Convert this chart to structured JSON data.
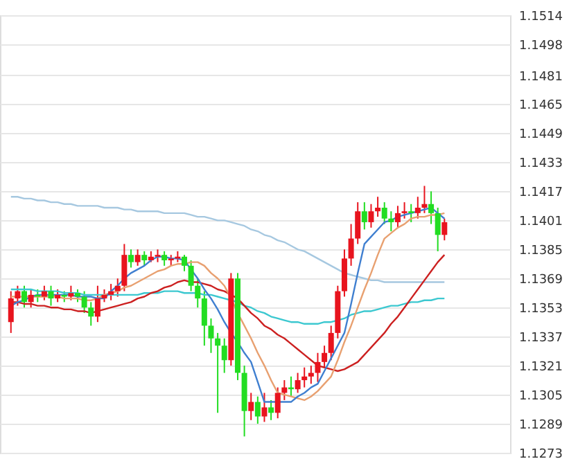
{
  "chart_data": {
    "type": "candlestick",
    "categories": [
      null,
      null,
      null,
      null,
      null,
      null,
      null,
      null,
      null,
      null,
      null,
      null,
      null,
      null,
      null,
      null,
      null,
      null,
      null,
      null,
      null,
      null,
      null,
      null,
      null,
      null,
      null,
      null,
      null,
      null,
      null,
      null,
      null,
      null,
      null,
      null,
      null,
      null,
      null,
      null,
      null,
      null,
      null,
      null,
      null,
      null,
      null,
      null,
      null,
      null,
      null,
      null,
      null,
      null,
      null,
      null,
      null,
      null,
      null,
      null,
      null,
      null,
      null,
      null,
      null,
      null
    ],
    "ohlc": [
      [
        1.1345,
        1.1362,
        1.1339,
        1.1358
      ],
      [
        1.1358,
        1.1365,
        1.1354,
        1.1362
      ],
      [
        1.1362,
        1.1365,
        1.1353,
        1.1356
      ],
      [
        1.1356,
        1.1363,
        1.1353,
        1.136
      ],
      [
        1.136,
        1.1363,
        1.1356,
        1.1359
      ],
      [
        1.1359,
        1.1365,
        1.1357,
        1.1362
      ],
      [
        1.1362,
        1.1365,
        1.1354,
        1.1358
      ],
      [
        1.1358,
        1.1363,
        1.1356,
        1.136
      ],
      [
        1.136,
        1.1362,
        1.1356,
        1.1359
      ],
      [
        1.1359,
        1.1365,
        1.1357,
        1.1361
      ],
      [
        1.1361,
        1.1363,
        1.1356,
        1.1359
      ],
      [
        1.1359,
        1.1362,
        1.135,
        1.1353
      ],
      [
        1.1353,
        1.1356,
        1.1343,
        1.1348
      ],
      [
        1.1348,
        1.1365,
        1.1345,
        1.1358
      ],
      [
        1.1358,
        1.1363,
        1.1356,
        1.136
      ],
      [
        1.136,
        1.1366,
        1.1357,
        1.1362
      ],
      [
        1.1362,
        1.1369,
        1.1359,
        1.1365
      ],
      [
        1.1365,
        1.1388,
        1.1362,
        1.1382
      ],
      [
        1.1382,
        1.1385,
        1.1375,
        1.1378
      ],
      [
        1.1378,
        1.1385,
        1.1376,
        1.1382
      ],
      [
        1.1382,
        1.1384,
        1.1376,
        1.1379
      ],
      [
        1.1379,
        1.1384,
        1.1378,
        1.1381
      ],
      [
        1.1381,
        1.1385,
        1.1378,
        1.1382
      ],
      [
        1.1382,
        1.1384,
        1.1376,
        1.1379
      ],
      [
        1.1379,
        1.1382,
        1.1376,
        1.138
      ],
      [
        1.138,
        1.1384,
        1.1378,
        1.1381
      ],
      [
        1.1381,
        1.1382,
        1.1373,
        1.1376
      ],
      [
        1.1376,
        1.1379,
        1.1362,
        1.1365
      ],
      [
        1.1365,
        1.1369,
        1.1353,
        1.1358
      ],
      [
        1.1358,
        1.1362,
        1.1332,
        1.1343
      ],
      [
        1.1343,
        1.1347,
        1.1328,
        1.1336
      ],
      [
        1.1336,
        1.1339,
        1.1295,
        1.1332
      ],
      [
        1.1332,
        1.1336,
        1.1317,
        1.1324
      ],
      [
        1.1324,
        1.1372,
        1.1321,
        1.1369
      ],
      [
        1.1369,
        1.1372,
        1.1313,
        1.1317
      ],
      [
        1.1317,
        1.1321,
        1.1282,
        1.1296
      ],
      [
        1.1296,
        1.1306,
        1.1291,
        1.1301
      ],
      [
        1.1301,
        1.1304,
        1.1289,
        1.1293
      ],
      [
        1.1293,
        1.1306,
        1.129,
        1.1298
      ],
      [
        1.1298,
        1.1302,
        1.1291,
        1.1295
      ],
      [
        1.1295,
        1.1309,
        1.1292,
        1.1306
      ],
      [
        1.1306,
        1.1313,
        1.1302,
        1.1309
      ],
      [
        1.1309,
        1.1315,
        1.1304,
        1.1308
      ],
      [
        1.1308,
        1.1317,
        1.1306,
        1.1313
      ],
      [
        1.1313,
        1.132,
        1.1309,
        1.1315
      ],
      [
        1.1315,
        1.1321,
        1.1311,
        1.1317
      ],
      [
        1.1317,
        1.1328,
        1.1312,
        1.1323
      ],
      [
        1.1323,
        1.1332,
        1.132,
        1.1328
      ],
      [
        1.1328,
        1.1343,
        1.1324,
        1.1339
      ],
      [
        1.1339,
        1.1365,
        1.1336,
        1.1362
      ],
      [
        1.1362,
        1.1385,
        1.1359,
        1.138
      ],
      [
        1.138,
        1.1399,
        1.1376,
        1.1391
      ],
      [
        1.1391,
        1.1411,
        1.1388,
        1.1406
      ],
      [
        1.1406,
        1.1411,
        1.1396,
        1.14
      ],
      [
        1.14,
        1.141,
        1.1397,
        1.1406
      ],
      [
        1.1406,
        1.1414,
        1.1403,
        1.1408
      ],
      [
        1.1408,
        1.1411,
        1.1399,
        1.1402
      ],
      [
        1.1402,
        1.1406,
        1.1395,
        1.14
      ],
      [
        1.14,
        1.1409,
        1.1397,
        1.1405
      ],
      [
        1.1405,
        1.1411,
        1.1402,
        1.1406
      ],
      [
        1.1406,
        1.141,
        1.14,
        1.1405
      ],
      [
        1.1405,
        1.1414,
        1.1402,
        1.1408
      ],
      [
        1.1408,
        1.142,
        1.1405,
        1.141
      ],
      [
        1.141,
        1.1417,
        1.1399,
        1.1405
      ],
      [
        1.1405,
        1.1408,
        1.1384,
        1.1393
      ],
      [
        1.1393,
        1.1402,
        1.139,
        1.14
      ]
    ],
    "colors": [
      "#e8141e",
      "#e8141e",
      "#22dd22",
      "#e8141e",
      "#22dd22",
      "#e8141e",
      "#22dd22",
      "#e8141e",
      "#22dd22",
      "#e8141e",
      "#22dd22",
      "#22dd22",
      "#22dd22",
      "#e8141e",
      "#e8141e",
      "#e8141e",
      "#e8141e",
      "#e8141e",
      "#22dd22",
      "#e8141e",
      "#22dd22",
      "#e8141e",
      "#e8141e",
      "#22dd22",
      "#e8141e",
      "#e8141e",
      "#22dd22",
      "#22dd22",
      "#22dd22",
      "#22dd22",
      "#22dd22",
      "#22dd22",
      "#22dd22",
      "#e8141e",
      "#22dd22",
      "#22dd22",
      "#e8141e",
      "#22dd22",
      "#e8141e",
      "#22dd22",
      "#e8141e",
      "#e8141e",
      "#22dd22",
      "#e8141e",
      "#e8141e",
      "#e8141e",
      "#e8141e",
      "#e8141e",
      "#e8141e",
      "#e8141e",
      "#e8141e",
      "#e8141e",
      "#e8141e",
      "#22dd22",
      "#e8141e",
      "#e8141e",
      "#22dd22",
      "#22dd22",
      "#e8141e",
      "#e8141e",
      "#22dd22",
      "#e8141e",
      "#e8141e",
      "#22dd22",
      "#22dd22",
      "#e8141e"
    ],
    "series": [
      {
        "type": "line",
        "color": "#a6c8e0",
        "values": [
          1.1414,
          1.1414,
          1.1413,
          1.1413,
          1.1412,
          1.1412,
          1.1411,
          1.1411,
          1.141,
          1.141,
          1.1409,
          1.1409,
          1.1409,
          1.1409,
          1.1408,
          1.1408,
          1.1408,
          1.1407,
          1.1407,
          1.1406,
          1.1406,
          1.1406,
          1.1406,
          1.1405,
          1.1405,
          1.1405,
          1.1405,
          1.1404,
          1.1403,
          1.1403,
          1.1402,
          1.1401,
          1.1401,
          1.14,
          1.1399,
          1.1398,
          1.1396,
          1.1395,
          1.1393,
          1.1392,
          1.139,
          1.1389,
          1.1387,
          1.1385,
          1.1384,
          1.1382,
          1.138,
          1.1378,
          1.1376,
          1.1374,
          1.1372,
          1.1371,
          1.137,
          1.1369,
          1.1368,
          1.1368,
          1.1367,
          1.1367,
          1.1367,
          1.1367,
          1.1367,
          1.1367,
          1.1367,
          1.1367,
          1.1367,
          1.1367
        ]
      },
      {
        "type": "line",
        "color": "#3cc8d0",
        "values": [
          1.1363,
          1.1363,
          1.1363,
          1.1363,
          1.1362,
          1.1362,
          1.1362,
          1.1362,
          1.1361,
          1.1361,
          1.1361,
          1.136,
          1.136,
          1.136,
          1.136,
          1.136,
          1.136,
          1.136,
          1.136,
          1.136,
          1.1361,
          1.1361,
          1.1361,
          1.1362,
          1.1362,
          1.1362,
          1.1361,
          1.1361,
          1.1361,
          1.136,
          1.136,
          1.1359,
          1.1358,
          1.1357,
          1.1356,
          1.1354,
          1.1353,
          1.1351,
          1.135,
          1.1348,
          1.1347,
          1.1346,
          1.1345,
          1.1345,
          1.1344,
          1.1344,
          1.1344,
          1.1345,
          1.1345,
          1.1346,
          1.1347,
          1.1349,
          1.135,
          1.1351,
          1.1351,
          1.1352,
          1.1353,
          1.1354,
          1.1354,
          1.1355,
          1.1356,
          1.1356,
          1.1357,
          1.1357,
          1.1358,
          1.1358
        ]
      },
      {
        "type": "line",
        "color": "#cc2020",
        "values": [
          1.1356,
          1.1356,
          1.1355,
          1.1355,
          1.1354,
          1.1354,
          1.1353,
          1.1353,
          1.1352,
          1.1352,
          1.1351,
          1.1351,
          1.135,
          1.1351,
          1.1352,
          1.1353,
          1.1354,
          1.1355,
          1.1356,
          1.1358,
          1.1359,
          1.1361,
          1.1362,
          1.1364,
          1.1365,
          1.1367,
          1.1368,
          1.1367,
          1.1367,
          1.1366,
          1.1365,
          1.1363,
          1.1362,
          1.136,
          1.1358,
          1.1354,
          1.135,
          1.1347,
          1.1343,
          1.1341,
          1.1338,
          1.1336,
          1.1333,
          1.133,
          1.1327,
          1.1324,
          1.1321,
          1.132,
          1.1319,
          1.1318,
          1.1319,
          1.1321,
          1.1323,
          1.1327,
          1.1331,
          1.1335,
          1.1339,
          1.1344,
          1.1348,
          1.1353,
          1.1358,
          1.1363,
          1.1368,
          1.1373,
          1.1378,
          1.1382
        ]
      },
      {
        "type": "line",
        "color": "#e8a070",
        "values": [
          1.1359,
          1.1359,
          1.1359,
          1.1359,
          1.1359,
          1.1359,
          1.1359,
          1.1359,
          1.1358,
          1.1358,
          1.1358,
          1.1357,
          1.1357,
          1.1358,
          1.136,
          1.1361,
          1.1362,
          1.1364,
          1.1365,
          1.1367,
          1.1369,
          1.1371,
          1.1373,
          1.1374,
          1.1376,
          1.1377,
          1.1377,
          1.1378,
          1.1378,
          1.1376,
          1.1372,
          1.1369,
          1.1365,
          1.1358,
          1.135,
          1.1343,
          1.1336,
          1.1328,
          1.1321,
          1.1313,
          1.1306,
          1.1305,
          1.1304,
          1.1303,
          1.1302,
          1.1304,
          1.1307,
          1.1311,
          1.1315,
          1.1324,
          1.1334,
          1.1343,
          1.1353,
          1.1363,
          1.1372,
          1.1382,
          1.1391,
          1.1394,
          1.1397,
          1.1399,
          1.1402,
          1.1403,
          1.1403,
          1.1404,
          1.1404,
          1.1405
        ]
      },
      {
        "type": "line",
        "color": "#3f7fd0",
        "values": [
          1.1354,
          1.1356,
          1.1357,
          1.1359,
          1.136,
          1.136,
          1.136,
          1.136,
          1.136,
          1.136,
          1.1359,
          1.1359,
          1.1359,
          1.1358,
          1.1358,
          1.1362,
          1.1365,
          1.1369,
          1.1372,
          1.1374,
          1.1376,
          1.1379,
          1.1381,
          1.1381,
          1.138,
          1.138,
          1.1379,
          1.1374,
          1.1369,
          1.1363,
          1.1358,
          1.1352,
          1.1345,
          1.1339,
          1.1334,
          1.1328,
          1.1323,
          1.1312,
          1.1301,
          1.1301,
          1.1301,
          1.1301,
          1.1301,
          1.1304,
          1.1306,
          1.1309,
          1.1311,
          1.1318,
          1.1325,
          1.1332,
          1.1339,
          1.1355,
          1.1372,
          1.1388,
          1.1392,
          1.1396,
          1.14,
          1.1401,
          1.1403,
          1.1404,
          1.1405,
          1.1406,
          1.1407,
          1.1408,
          1.1405,
          1.1402
        ]
      }
    ],
    "ylim": [
      1.1273,
      1.1514
    ],
    "yticks": [
      1.1514,
      1.1498,
      1.1481,
      1.1465,
      1.1449,
      1.1433,
      1.1417,
      1.1401,
      1.1385,
      1.1369,
      1.1353,
      1.1337,
      1.1321,
      1.1305,
      1.1289,
      1.1273
    ],
    "grid": "y",
    "marker": "none",
    "line_style": "solid",
    "tick_labels": "y"
  }
}
